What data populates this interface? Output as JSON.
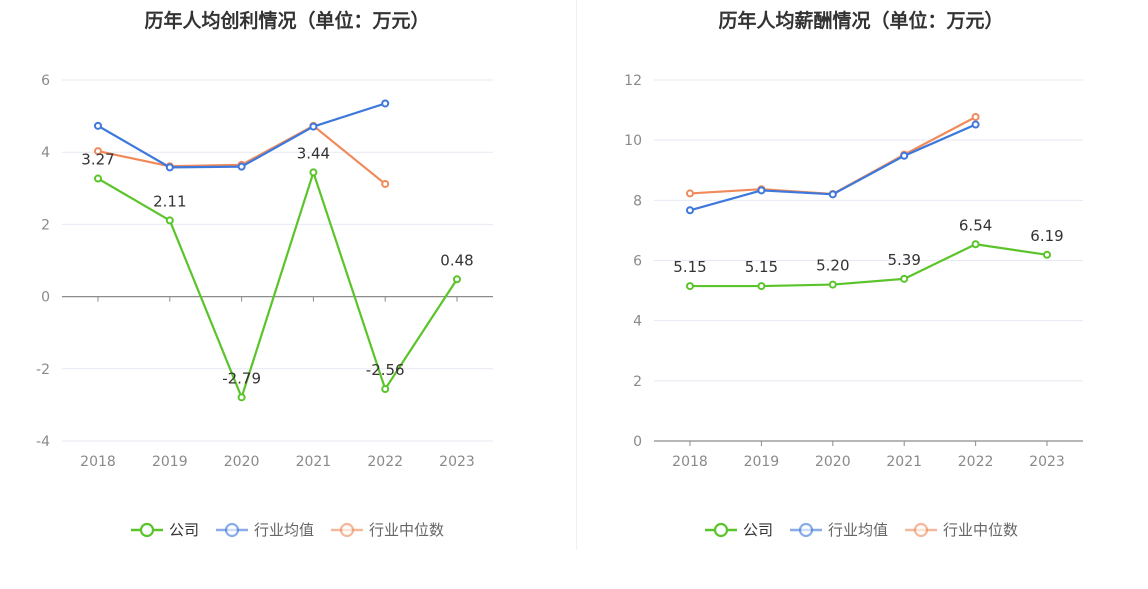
{
  "chart_data": [
    {
      "type": "line",
      "title": "历年人均创利情况（单位：万元）",
      "categories": [
        "2018",
        "2019",
        "2020",
        "2021",
        "2022",
        "2023"
      ],
      "ylim": [
        -4,
        6
      ],
      "yticks": [
        -4,
        -2,
        0,
        2,
        4,
        6
      ],
      "series": [
        {
          "name": "公司",
          "color": "#5ac42a",
          "values": [
            3.27,
            2.11,
            -2.79,
            3.44,
            -2.56,
            0.48
          ],
          "labels": [
            "3.27",
            "2.11",
            "-2.79",
            "3.44",
            "-2.56",
            "0.48"
          ]
        },
        {
          "name": "行业均值",
          "color": "#3d78dc",
          "values": [
            4.73,
            3.58,
            3.6,
            4.71,
            5.35,
            null
          ]
        },
        {
          "name": "行业中位数",
          "color": "#f08a5a",
          "values": [
            4.03,
            3.61,
            3.65,
            4.73,
            3.12,
            null
          ]
        }
      ],
      "legend_position": "bottom",
      "grid": true
    },
    {
      "type": "line",
      "title": "历年人均薪酬情况（单位：万元）",
      "categories": [
        "2018",
        "2019",
        "2020",
        "2021",
        "2022",
        "2023"
      ],
      "ylim": [
        0,
        12
      ],
      "yticks": [
        0,
        2,
        4,
        6,
        8,
        10,
        12
      ],
      "series": [
        {
          "name": "公司",
          "color": "#5ac42a",
          "values": [
            5.15,
            5.15,
            5.2,
            5.39,
            6.54,
            6.19
          ],
          "labels": [
            "5.15",
            "5.15",
            "5.20",
            "5.39",
            "6.54",
            "6.19"
          ]
        },
        {
          "name": "行业均值",
          "color": "#3d78dc",
          "values": [
            7.67,
            8.33,
            8.2,
            9.48,
            10.52,
            null
          ]
        },
        {
          "name": "行业中位数",
          "color": "#f08a5a",
          "values": [
            8.23,
            8.37,
            8.21,
            9.52,
            10.77,
            null
          ]
        }
      ],
      "legend_position": "bottom",
      "grid": true
    }
  ]
}
